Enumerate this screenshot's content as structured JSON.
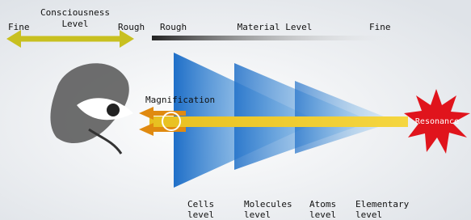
{
  "consciousness_scale": {
    "left": "Fine",
    "title": [
      "Consciousness",
      "Level"
    ],
    "right": "Rough"
  },
  "material_scale": {
    "left": "Rough",
    "title": "Material Level",
    "right": "Fine"
  },
  "magnification": "Magnification",
  "resonance": "Resonance",
  "levels": [
    [
      "Cells",
      "level"
    ],
    [
      "Molecules",
      "level"
    ],
    [
      "Atoms",
      "level"
    ],
    [
      "Elementary",
      "level"
    ]
  ]
}
